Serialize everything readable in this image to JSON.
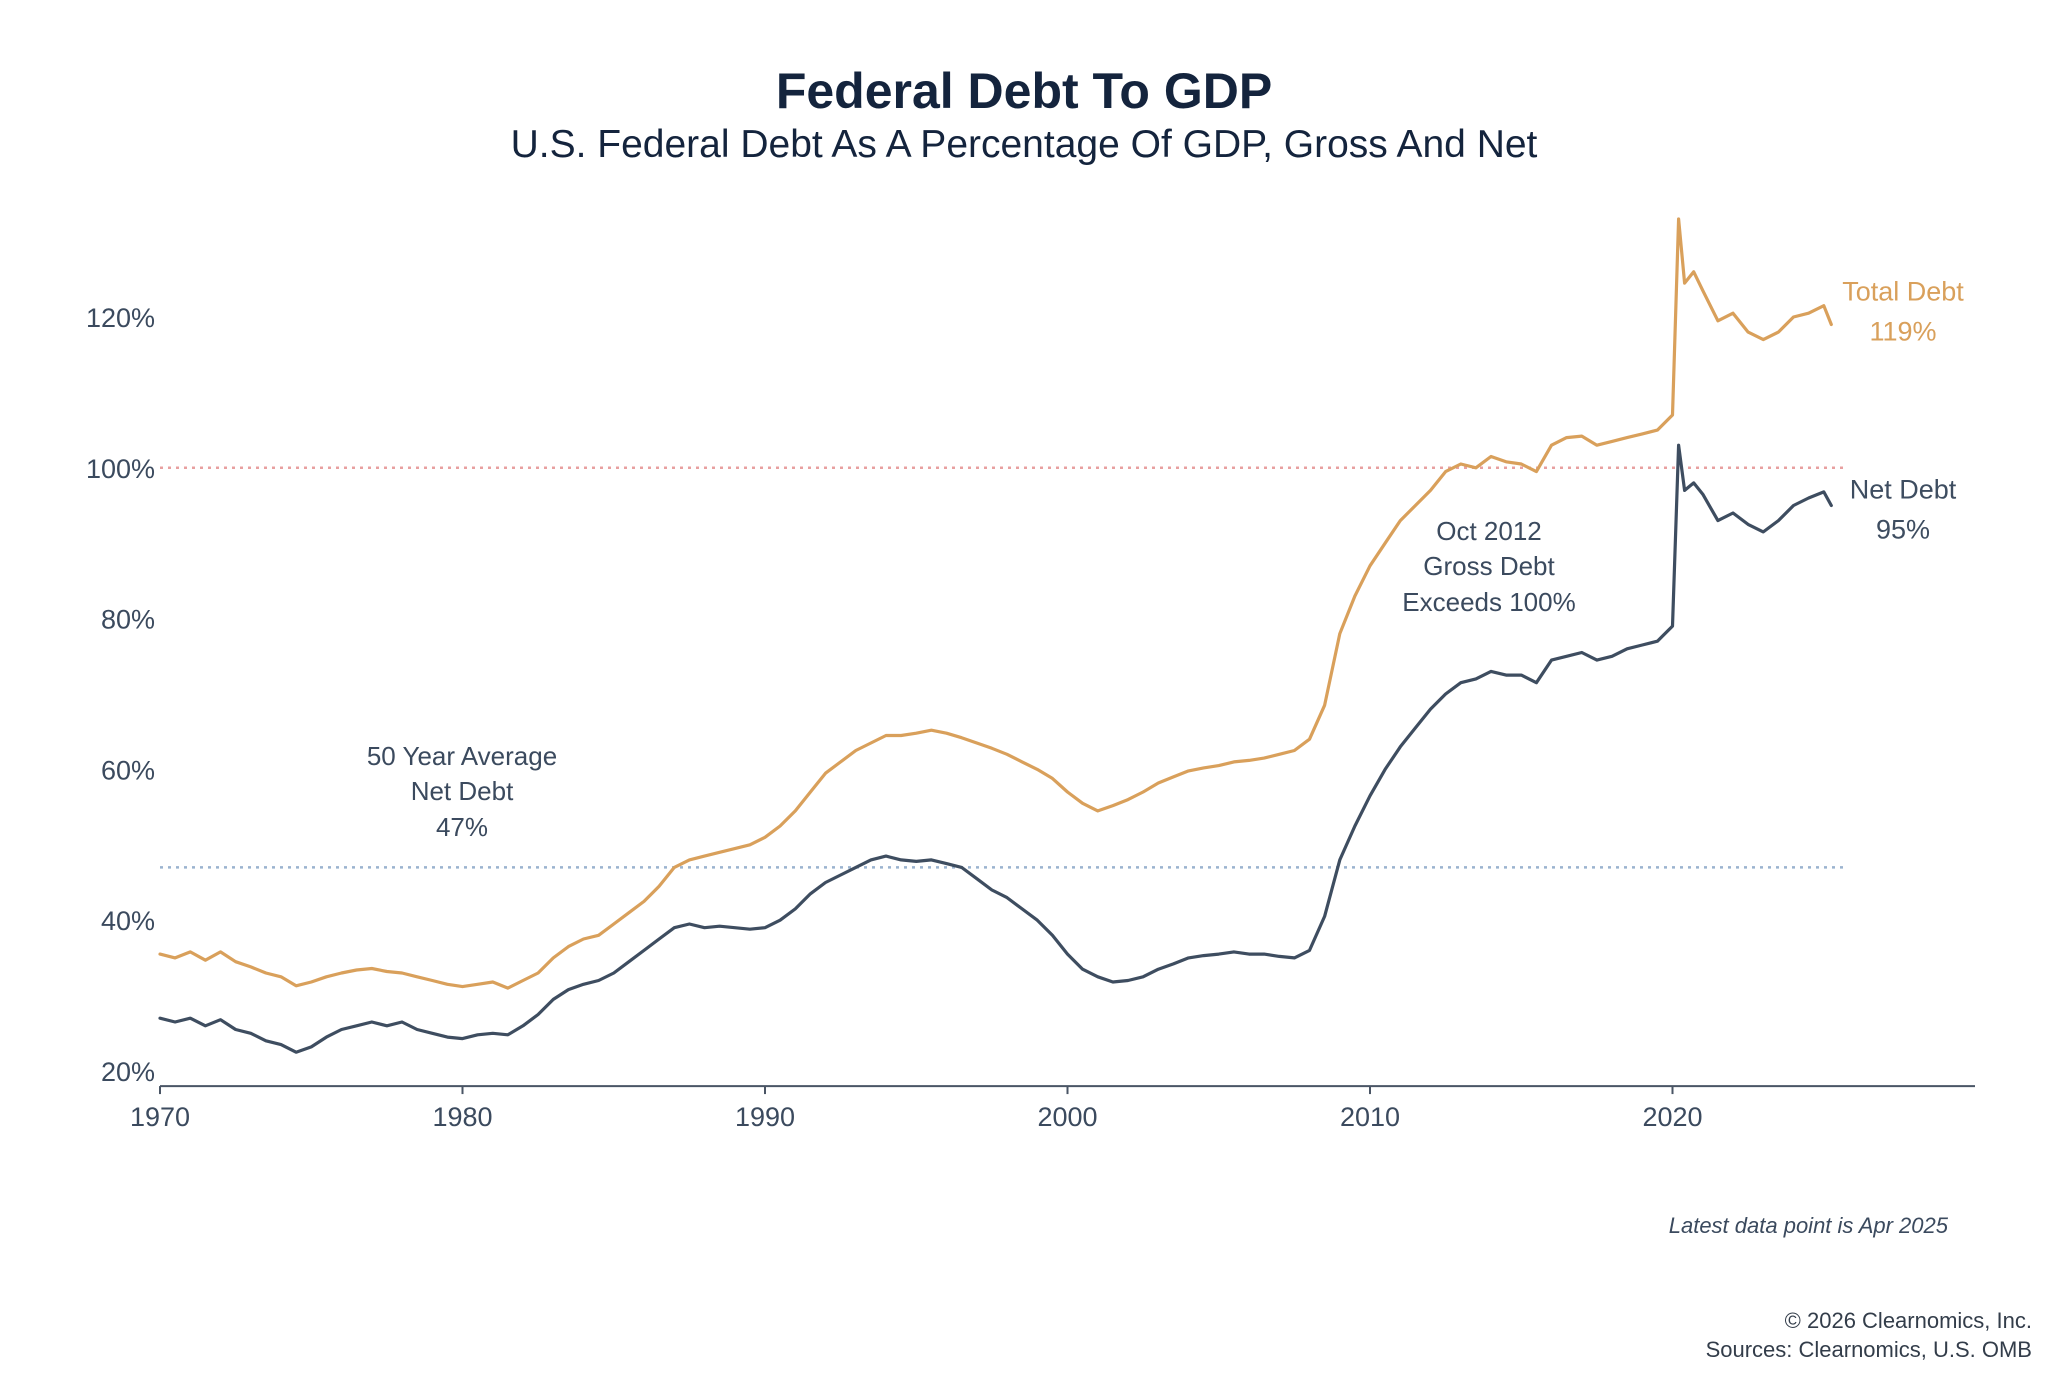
{
  "chart_data": {
    "type": "line",
    "title": "Federal Debt To GDP",
    "subtitle": "U.S. Federal Debt As A Percentage Of GDP, Gross And Net",
    "xlabel": "",
    "ylabel": "",
    "xlim": [
      1970,
      2030
    ],
    "ylim": [
      18,
      132
    ],
    "x_ticks": [
      1970,
      1980,
      1990,
      2000,
      2010,
      2020
    ],
    "x_tick_labels": [
      "1970",
      "1980",
      "1990",
      "2000",
      "2010",
      "2020"
    ],
    "y_ticks": [
      20,
      40,
      60,
      80,
      100,
      120
    ],
    "y_tick_labels": [
      "20%",
      "40%",
      "60%",
      "80%",
      "100%",
      "120%"
    ],
    "grid": false,
    "series": [
      {
        "name": "Total Debt",
        "color": "#d9a05b",
        "end_label": "Total Debt",
        "end_value_label": "119%",
        "points": [
          [
            1970.0,
            35.5
          ],
          [
            1970.5,
            35.0
          ],
          [
            1971.0,
            35.8
          ],
          [
            1971.5,
            34.7
          ],
          [
            1972.0,
            35.8
          ],
          [
            1972.5,
            34.5
          ],
          [
            1973.0,
            33.8
          ],
          [
            1973.5,
            33.0
          ],
          [
            1974.0,
            32.5
          ],
          [
            1974.5,
            31.3
          ],
          [
            1975.0,
            31.8
          ],
          [
            1975.5,
            32.5
          ],
          [
            1976.0,
            33.0
          ],
          [
            1976.5,
            33.4
          ],
          [
            1977.0,
            33.6
          ],
          [
            1977.5,
            33.2
          ],
          [
            1978.0,
            33.0
          ],
          [
            1978.5,
            32.5
          ],
          [
            1979.0,
            32.0
          ],
          [
            1979.5,
            31.5
          ],
          [
            1980.0,
            31.2
          ],
          [
            1980.5,
            31.5
          ],
          [
            1981.0,
            31.8
          ],
          [
            1981.5,
            31.0
          ],
          [
            1982.0,
            32.0
          ],
          [
            1982.5,
            33.0
          ],
          [
            1983.0,
            35.0
          ],
          [
            1983.5,
            36.5
          ],
          [
            1984.0,
            37.5
          ],
          [
            1984.5,
            38.0
          ],
          [
            1985.0,
            39.5
          ],
          [
            1985.5,
            41.0
          ],
          [
            1986.0,
            42.5
          ],
          [
            1986.5,
            44.5
          ],
          [
            1987.0,
            47.0
          ],
          [
            1987.5,
            48.0
          ],
          [
            1988.0,
            48.5
          ],
          [
            1988.5,
            49.0
          ],
          [
            1989.0,
            49.5
          ],
          [
            1989.5,
            50.0
          ],
          [
            1990.0,
            51.0
          ],
          [
            1990.5,
            52.5
          ],
          [
            1991.0,
            54.5
          ],
          [
            1991.5,
            57.0
          ],
          [
            1992.0,
            59.5
          ],
          [
            1992.5,
            61.0
          ],
          [
            1993.0,
            62.5
          ],
          [
            1993.5,
            63.5
          ],
          [
            1994.0,
            64.5
          ],
          [
            1994.5,
            64.5
          ],
          [
            1995.0,
            64.8
          ],
          [
            1995.5,
            65.2
          ],
          [
            1996.0,
            64.8
          ],
          [
            1996.5,
            64.2
          ],
          [
            1997.0,
            63.5
          ],
          [
            1997.5,
            62.8
          ],
          [
            1998.0,
            62.0
          ],
          [
            1998.5,
            61.0
          ],
          [
            1999.0,
            60.0
          ],
          [
            1999.5,
            58.8
          ],
          [
            2000.0,
            57.0
          ],
          [
            2000.5,
            55.5
          ],
          [
            2001.0,
            54.5
          ],
          [
            2001.5,
            55.2
          ],
          [
            2002.0,
            56.0
          ],
          [
            2002.5,
            57.0
          ],
          [
            2003.0,
            58.2
          ],
          [
            2003.5,
            59.0
          ],
          [
            2004.0,
            59.8
          ],
          [
            2004.5,
            60.2
          ],
          [
            2005.0,
            60.5
          ],
          [
            2005.5,
            61.0
          ],
          [
            2006.0,
            61.2
          ],
          [
            2006.5,
            61.5
          ],
          [
            2007.0,
            62.0
          ],
          [
            2007.5,
            62.5
          ],
          [
            2008.0,
            64.0
          ],
          [
            2008.5,
            68.5
          ],
          [
            2009.0,
            78.0
          ],
          [
            2009.5,
            83.0
          ],
          [
            2010.0,
            87.0
          ],
          [
            2010.5,
            90.0
          ],
          [
            2011.0,
            93.0
          ],
          [
            2011.5,
            95.0
          ],
          [
            2012.0,
            97.0
          ],
          [
            2012.5,
            99.5
          ],
          [
            2013.0,
            100.5
          ],
          [
            2013.5,
            100.0
          ],
          [
            2014.0,
            101.5
          ],
          [
            2014.5,
            100.8
          ],
          [
            2015.0,
            100.5
          ],
          [
            2015.5,
            99.5
          ],
          [
            2016.0,
            103.0
          ],
          [
            2016.5,
            104.0
          ],
          [
            2017.0,
            104.2
          ],
          [
            2017.5,
            103.0
          ],
          [
            2018.0,
            103.5
          ],
          [
            2018.5,
            104.0
          ],
          [
            2019.0,
            104.5
          ],
          [
            2019.5,
            105.0
          ],
          [
            2020.0,
            107.0
          ],
          [
            2020.2,
            133.0
          ],
          [
            2020.4,
            124.5
          ],
          [
            2020.7,
            126.0
          ],
          [
            2021.0,
            123.5
          ],
          [
            2021.5,
            119.5
          ],
          [
            2022.0,
            120.5
          ],
          [
            2022.5,
            118.0
          ],
          [
            2023.0,
            117.0
          ],
          [
            2023.5,
            118.0
          ],
          [
            2024.0,
            120.0
          ],
          [
            2024.5,
            120.5
          ],
          [
            2025.0,
            121.5
          ],
          [
            2025.25,
            119.0
          ]
        ]
      },
      {
        "name": "Net Debt",
        "color": "#3e4d60",
        "end_label": "Net Debt",
        "end_value_label": "95%",
        "points": [
          [
            1970.0,
            27.0
          ],
          [
            1970.5,
            26.5
          ],
          [
            1971.0,
            27.0
          ],
          [
            1971.5,
            26.0
          ],
          [
            1972.0,
            26.8
          ],
          [
            1972.5,
            25.5
          ],
          [
            1973.0,
            25.0
          ],
          [
            1973.5,
            24.0
          ],
          [
            1974.0,
            23.5
          ],
          [
            1974.5,
            22.5
          ],
          [
            1975.0,
            23.2
          ],
          [
            1975.5,
            24.5
          ],
          [
            1976.0,
            25.5
          ],
          [
            1976.5,
            26.0
          ],
          [
            1977.0,
            26.5
          ],
          [
            1977.5,
            26.0
          ],
          [
            1978.0,
            26.5
          ],
          [
            1978.5,
            25.5
          ],
          [
            1979.0,
            25.0
          ],
          [
            1979.5,
            24.5
          ],
          [
            1980.0,
            24.3
          ],
          [
            1980.5,
            24.8
          ],
          [
            1981.0,
            25.0
          ],
          [
            1981.5,
            24.8
          ],
          [
            1982.0,
            26.0
          ],
          [
            1982.5,
            27.5
          ],
          [
            1983.0,
            29.5
          ],
          [
            1983.5,
            30.8
          ],
          [
            1984.0,
            31.5
          ],
          [
            1984.5,
            32.0
          ],
          [
            1985.0,
            33.0
          ],
          [
            1985.5,
            34.5
          ],
          [
            1986.0,
            36.0
          ],
          [
            1986.5,
            37.5
          ],
          [
            1987.0,
            39.0
          ],
          [
            1987.5,
            39.5
          ],
          [
            1988.0,
            39.0
          ],
          [
            1988.5,
            39.2
          ],
          [
            1989.0,
            39.0
          ],
          [
            1989.5,
            38.8
          ],
          [
            1990.0,
            39.0
          ],
          [
            1990.5,
            40.0
          ],
          [
            1991.0,
            41.5
          ],
          [
            1991.5,
            43.5
          ],
          [
            1992.0,
            45.0
          ],
          [
            1992.5,
            46.0
          ],
          [
            1993.0,
            47.0
          ],
          [
            1993.5,
            48.0
          ],
          [
            1994.0,
            48.5
          ],
          [
            1994.5,
            48.0
          ],
          [
            1995.0,
            47.8
          ],
          [
            1995.5,
            48.0
          ],
          [
            1996.0,
            47.5
          ],
          [
            1996.5,
            47.0
          ],
          [
            1997.0,
            45.5
          ],
          [
            1997.5,
            44.0
          ],
          [
            1998.0,
            43.0
          ],
          [
            1998.5,
            41.5
          ],
          [
            1999.0,
            40.0
          ],
          [
            1999.5,
            38.0
          ],
          [
            2000.0,
            35.5
          ],
          [
            2000.5,
            33.5
          ],
          [
            2001.0,
            32.5
          ],
          [
            2001.5,
            31.8
          ],
          [
            2002.0,
            32.0
          ],
          [
            2002.5,
            32.5
          ],
          [
            2003.0,
            33.5
          ],
          [
            2003.5,
            34.2
          ],
          [
            2004.0,
            35.0
          ],
          [
            2004.5,
            35.3
          ],
          [
            2005.0,
            35.5
          ],
          [
            2005.5,
            35.8
          ],
          [
            2006.0,
            35.5
          ],
          [
            2006.5,
            35.5
          ],
          [
            2007.0,
            35.2
          ],
          [
            2007.5,
            35.0
          ],
          [
            2008.0,
            36.0
          ],
          [
            2008.5,
            40.5
          ],
          [
            2009.0,
            48.0
          ],
          [
            2009.5,
            52.5
          ],
          [
            2010.0,
            56.5
          ],
          [
            2010.5,
            60.0
          ],
          [
            2011.0,
            63.0
          ],
          [
            2011.5,
            65.5
          ],
          [
            2012.0,
            68.0
          ],
          [
            2012.5,
            70.0
          ],
          [
            2013.0,
            71.5
          ],
          [
            2013.5,
            72.0
          ],
          [
            2014.0,
            73.0
          ],
          [
            2014.5,
            72.5
          ],
          [
            2015.0,
            72.5
          ],
          [
            2015.5,
            71.5
          ],
          [
            2016.0,
            74.5
          ],
          [
            2016.5,
            75.0
          ],
          [
            2017.0,
            75.5
          ],
          [
            2017.5,
            74.5
          ],
          [
            2018.0,
            75.0
          ],
          [
            2018.5,
            76.0
          ],
          [
            2019.0,
            76.5
          ],
          [
            2019.5,
            77.0
          ],
          [
            2020.0,
            79.0
          ],
          [
            2020.2,
            103.0
          ],
          [
            2020.4,
            97.0
          ],
          [
            2020.7,
            98.0
          ],
          [
            2021.0,
            96.5
          ],
          [
            2021.5,
            93.0
          ],
          [
            2022.0,
            94.0
          ],
          [
            2022.5,
            92.5
          ],
          [
            2023.0,
            91.5
          ],
          [
            2023.5,
            93.0
          ],
          [
            2024.0,
            95.0
          ],
          [
            2024.5,
            96.0
          ],
          [
            2025.0,
            96.8
          ],
          [
            2025.25,
            95.0
          ]
        ]
      }
    ],
    "reference_lines": [
      {
        "name": "100% threshold",
        "y": 100,
        "color": "#e8a0a0",
        "style": "dotted"
      },
      {
        "name": "50 Year Average Net Debt",
        "y": 47,
        "color": "#9bb3cf",
        "style": "dotted"
      }
    ],
    "annotations": [
      {
        "name": "net-debt-average-annotation",
        "lines": [
          "50 Year Average",
          "Net Debt",
          "47%"
        ]
      },
      {
        "name": "oct-2012-annotation",
        "lines": [
          "Oct 2012",
          "Gross Debt",
          "Exceeds 100%"
        ]
      }
    ]
  },
  "note": "Latest data point is Apr 2025",
  "footer": {
    "copyright": "© 2026 Clearnomics, Inc.",
    "sources": "Sources: Clearnomics, U.S. OMB"
  }
}
